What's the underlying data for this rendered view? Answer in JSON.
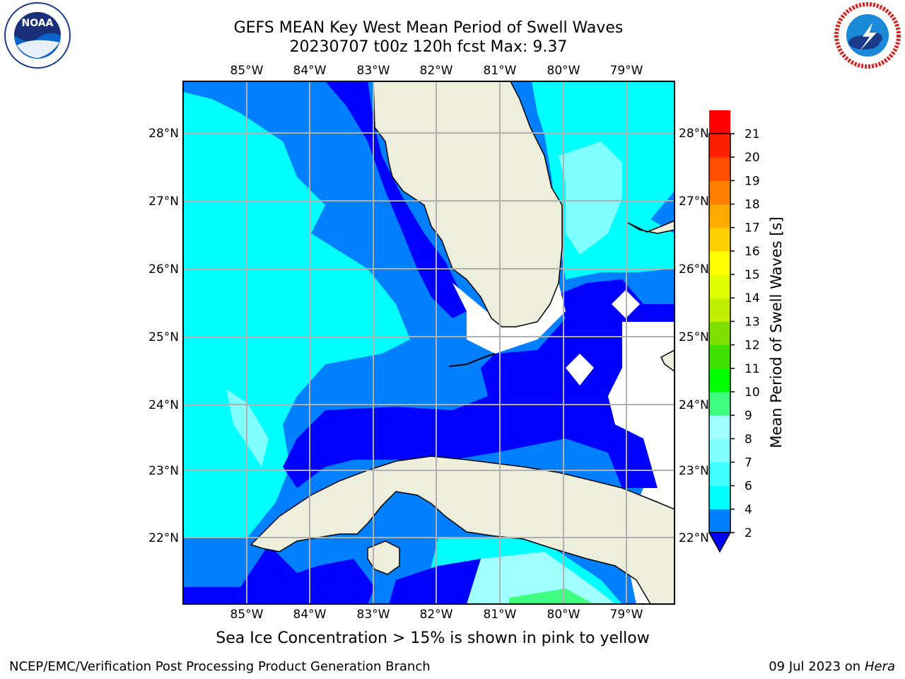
{
  "title": {
    "line1": "GEFS MEAN Key West Mean Period of Swell Waves",
    "line2": "20230707 t00z 120h fcst   Max: 9.37"
  },
  "map": {
    "lon_labels": [
      "85°W",
      "84°W",
      "83°W",
      "82°W",
      "81°W",
      "80°W",
      "79°W"
    ],
    "lat_labels": [
      "28°N",
      "27°N",
      "26°N",
      "25°N",
      "24°N",
      "23°N",
      "22°N"
    ],
    "land_color": "#eeeedd",
    "grid_color": "#b0b0b0"
  },
  "colorbar": {
    "label": "Mean Period of Swell Waves [s]",
    "ticks": [
      "2",
      "4",
      "6",
      "7",
      "8",
      "9",
      "10",
      "11",
      "12",
      "13",
      "14",
      "15",
      "16",
      "17",
      "18",
      "19",
      "20",
      "21"
    ],
    "colors": [
      "#0000ff",
      "#0080ff",
      "#00ffff",
      "#40ffff",
      "#7fffff",
      "#a0ffff",
      "#40ff80",
      "#00ff00",
      "#40e000",
      "#80e000",
      "#c0f000",
      "#e0ff00",
      "#ffff00",
      "#ffd000",
      "#ffaa00",
      "#ff8000",
      "#ff5000",
      "#ff2000",
      "#ff0000"
    ]
  },
  "footer": {
    "note": "Sea Ice Concentration > 15% is shown in pink to yellow",
    "credit": "NCEP/EMC/Verification Post Processing Product Generation Branch",
    "date": "09 Jul 2023 on",
    "host": "Hera"
  },
  "logos": {
    "noaa": "NOAA",
    "nws": "NATIONAL WEATHER SERVICE"
  }
}
